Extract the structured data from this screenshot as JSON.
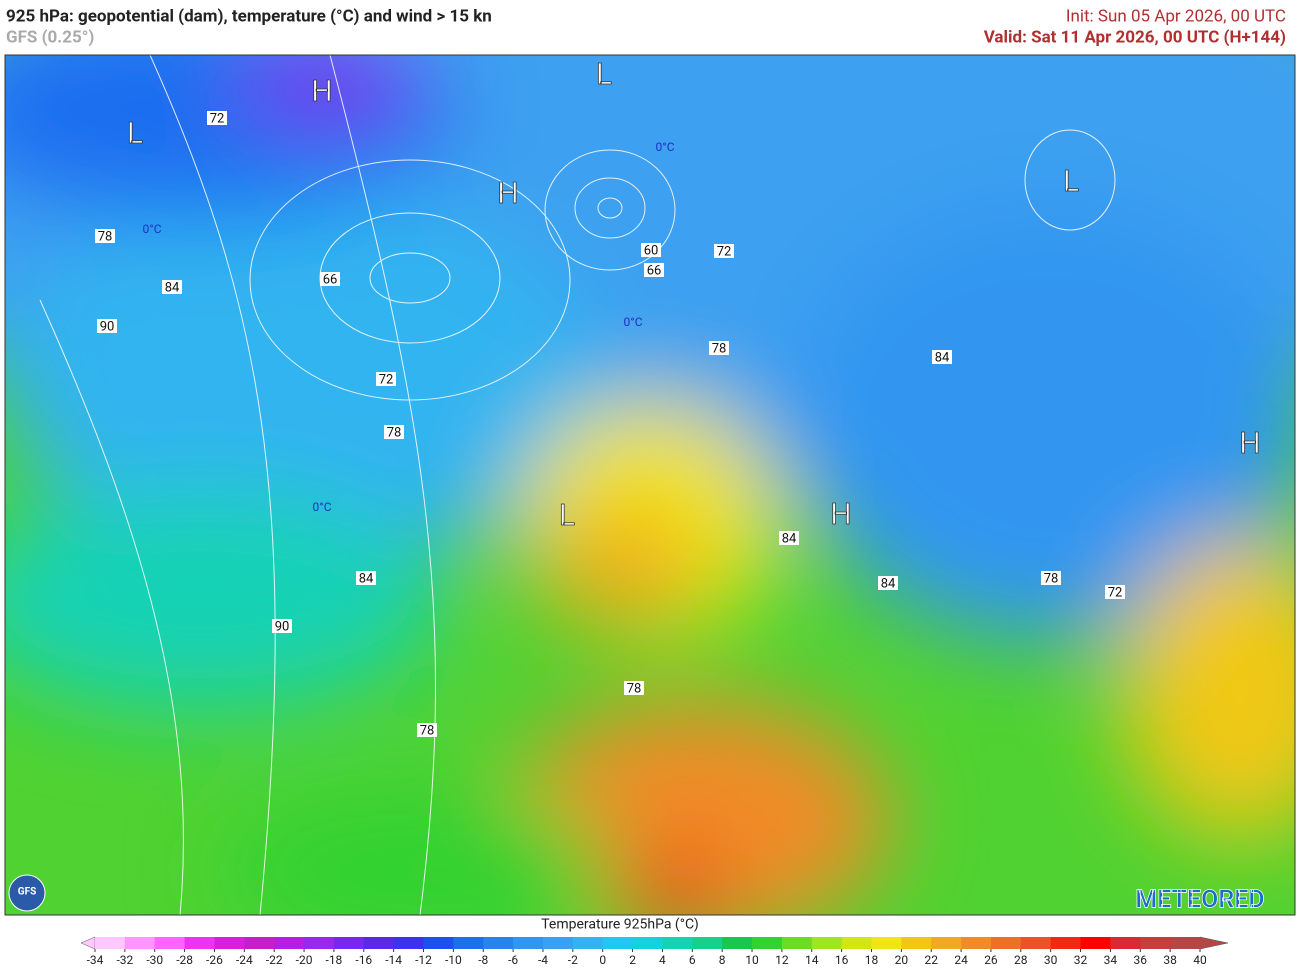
{
  "header": {
    "title": "925 hPa: geopotential (dam), temperature (°C) and wind > 15 kn",
    "model": "GFS (0.25°)",
    "init": "Init: Sun 05 Apr 2026, 00 UTC",
    "valid": "Valid: Sat 11 Apr 2026, 00 UTC (H+144)"
  },
  "map": {
    "pressure_centres": [
      "L",
      "H",
      "L",
      "H",
      "L",
      "L",
      "H",
      "H"
    ],
    "contour_labels": [
      72,
      78,
      84,
      90,
      66,
      72,
      78,
      60,
      66,
      72,
      78,
      84,
      84,
      84,
      78,
      72,
      84,
      90,
      78,
      78
    ],
    "isotherm_labels": [
      "0°C",
      "0°C",
      "0°C",
      "0°C"
    ],
    "logos": {
      "model": "GFS",
      "brand": "METEORED"
    }
  },
  "colorbar": {
    "title": "Temperature 925hPa (°C)",
    "ticks": [
      -34,
      -32,
      -30,
      -28,
      -26,
      -24,
      -22,
      -20,
      -18,
      -16,
      -14,
      -12,
      -10,
      -8,
      -6,
      -4,
      -2,
      0,
      2,
      4,
      6,
      8,
      10,
      12,
      14,
      16,
      18,
      20,
      22,
      24,
      26,
      28,
      30,
      32,
      34,
      36,
      38,
      40
    ],
    "colors": [
      "#ffc8ff",
      "#ff96ff",
      "#ff64ff",
      "#f032f0",
      "#dc1edc",
      "#c81ec8",
      "#b41ee6",
      "#9628f0",
      "#7828f0",
      "#5a28e6",
      "#3c32f0",
      "#1e50f0",
      "#1e6ef0",
      "#2882f0",
      "#3296f0",
      "#3ca0f0",
      "#32b4f0",
      "#1ec8f0",
      "#14d2dc",
      "#14d2b4",
      "#14d28c",
      "#14c850",
      "#32d232",
      "#6edc1e",
      "#a0e61e",
      "#d2e614",
      "#f0e614",
      "#f0c814",
      "#f0aa1e",
      "#f08c28",
      "#f06e28",
      "#f05028",
      "#f02814",
      "#ff0000",
      "#dc2832",
      "#c83c3c",
      "#b44646"
    ]
  }
}
